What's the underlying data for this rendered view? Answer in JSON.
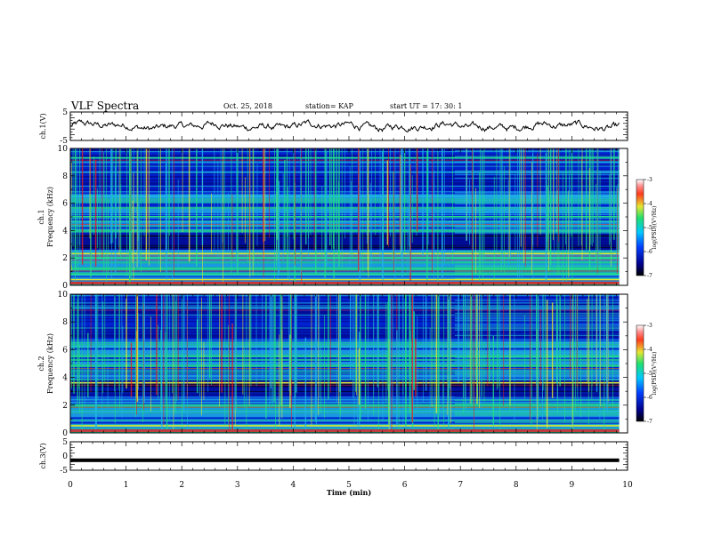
{
  "header": {
    "title": "VLF Spectra",
    "date": "Oct. 25, 2018",
    "station": "station= KAP",
    "start": "start  UT  =   17: 30: 1"
  },
  "palette": {
    "dark_blue": "#000a8c",
    "blue": "#0022d0",
    "cyan": "#20b4e6",
    "green": "#22e08a",
    "yellow": "#e6e632",
    "red": "#e62020",
    "black": "#000000"
  },
  "chart_data": [
    {
      "type": "line",
      "panel": "ch1-waveform",
      "ylabel": "ch.1(V)",
      "ylim": [
        -5,
        5
      ],
      "yticks": [
        "5",
        "-5"
      ],
      "xlim": [
        0,
        10
      ],
      "x_end": 9.85,
      "description_values_sampled": true,
      "y_mean": 0,
      "y_amplitude": 2.2
    },
    {
      "type": "heatmap",
      "panel": "ch1-spectrogram",
      "ylabel": "ch.1\nFrequency (kHz)",
      "ylabel_line1": "ch.1",
      "ylabel_line2": "Frequency (kHz)",
      "ylim": [
        0,
        10
      ],
      "yticks": [
        "0",
        "2",
        "4",
        "6",
        "8",
        "10"
      ],
      "xlim": [
        0,
        10
      ],
      "x_end": 9.85,
      "regime_change_min": 6.9,
      "colorbar": {
        "label": "log(PSD)(V²/Hz)",
        "range": [
          -7,
          -3
        ],
        "ticks": [
          "-3",
          "-4",
          "-5",
          "-6",
          "-7"
        ]
      },
      "bands": [
        {
          "f": 0.4,
          "level": "yellow"
        },
        {
          "f": 0.8,
          "level": "green"
        },
        {
          "f": 1.2,
          "level": "green"
        },
        {
          "f": 2.0,
          "level": "green"
        },
        {
          "f": 2.3,
          "level": "yellow"
        },
        {
          "f": 3.4,
          "level": "dark_blue"
        },
        {
          "f": 4.6,
          "level": "cyan"
        },
        {
          "f": 5.0,
          "level": "green"
        },
        {
          "f": 6.5,
          "level": "cyan"
        },
        {
          "f": 9.3,
          "level": "green"
        }
      ]
    },
    {
      "type": "heatmap",
      "panel": "ch2-spectrogram",
      "ylabel": "ch.2\nFrequency (kHz)",
      "ylabel_line1": "ch.2",
      "ylabel_line2": "Frequency (kHz)",
      "ylim": [
        0,
        10
      ],
      "yticks": [
        "0",
        "2",
        "4",
        "6",
        "8",
        "10"
      ],
      "xlim": [
        0,
        10
      ],
      "x_end": 9.85,
      "regime_change_min": 6.9,
      "colorbar": {
        "label": "log(PSD)(V²/Hz)",
        "range": [
          -7,
          -3
        ],
        "ticks": [
          "-3",
          "-4",
          "-5",
          "-6",
          "-7"
        ]
      },
      "bands": [
        {
          "f": 0.5,
          "level": "yellow"
        },
        {
          "f": 1.5,
          "level": "cyan"
        },
        {
          "f": 2.0,
          "level": "green"
        },
        {
          "f": 3.2,
          "level": "dark_blue"
        },
        {
          "f": 3.6,
          "level": "yellow"
        },
        {
          "f": 4.8,
          "level": "green"
        },
        {
          "f": 5.5,
          "level": "green"
        },
        {
          "f": 6.2,
          "level": "cyan"
        },
        {
          "f": 9.0,
          "level": "cyan"
        }
      ]
    },
    {
      "type": "line",
      "panel": "ch3-waveform",
      "ylabel": "ch.3(V)",
      "ylim": [
        -5,
        5
      ],
      "yticks": [
        "5",
        "0",
        "-5"
      ],
      "xlim": [
        0,
        10
      ],
      "x_end": 9.85,
      "constant_value": -1.5,
      "xlabel": "Time (min)",
      "xticks": [
        "0",
        "1",
        "2",
        "3",
        "4",
        "5",
        "6",
        "7",
        "8",
        "9",
        "10"
      ]
    }
  ]
}
